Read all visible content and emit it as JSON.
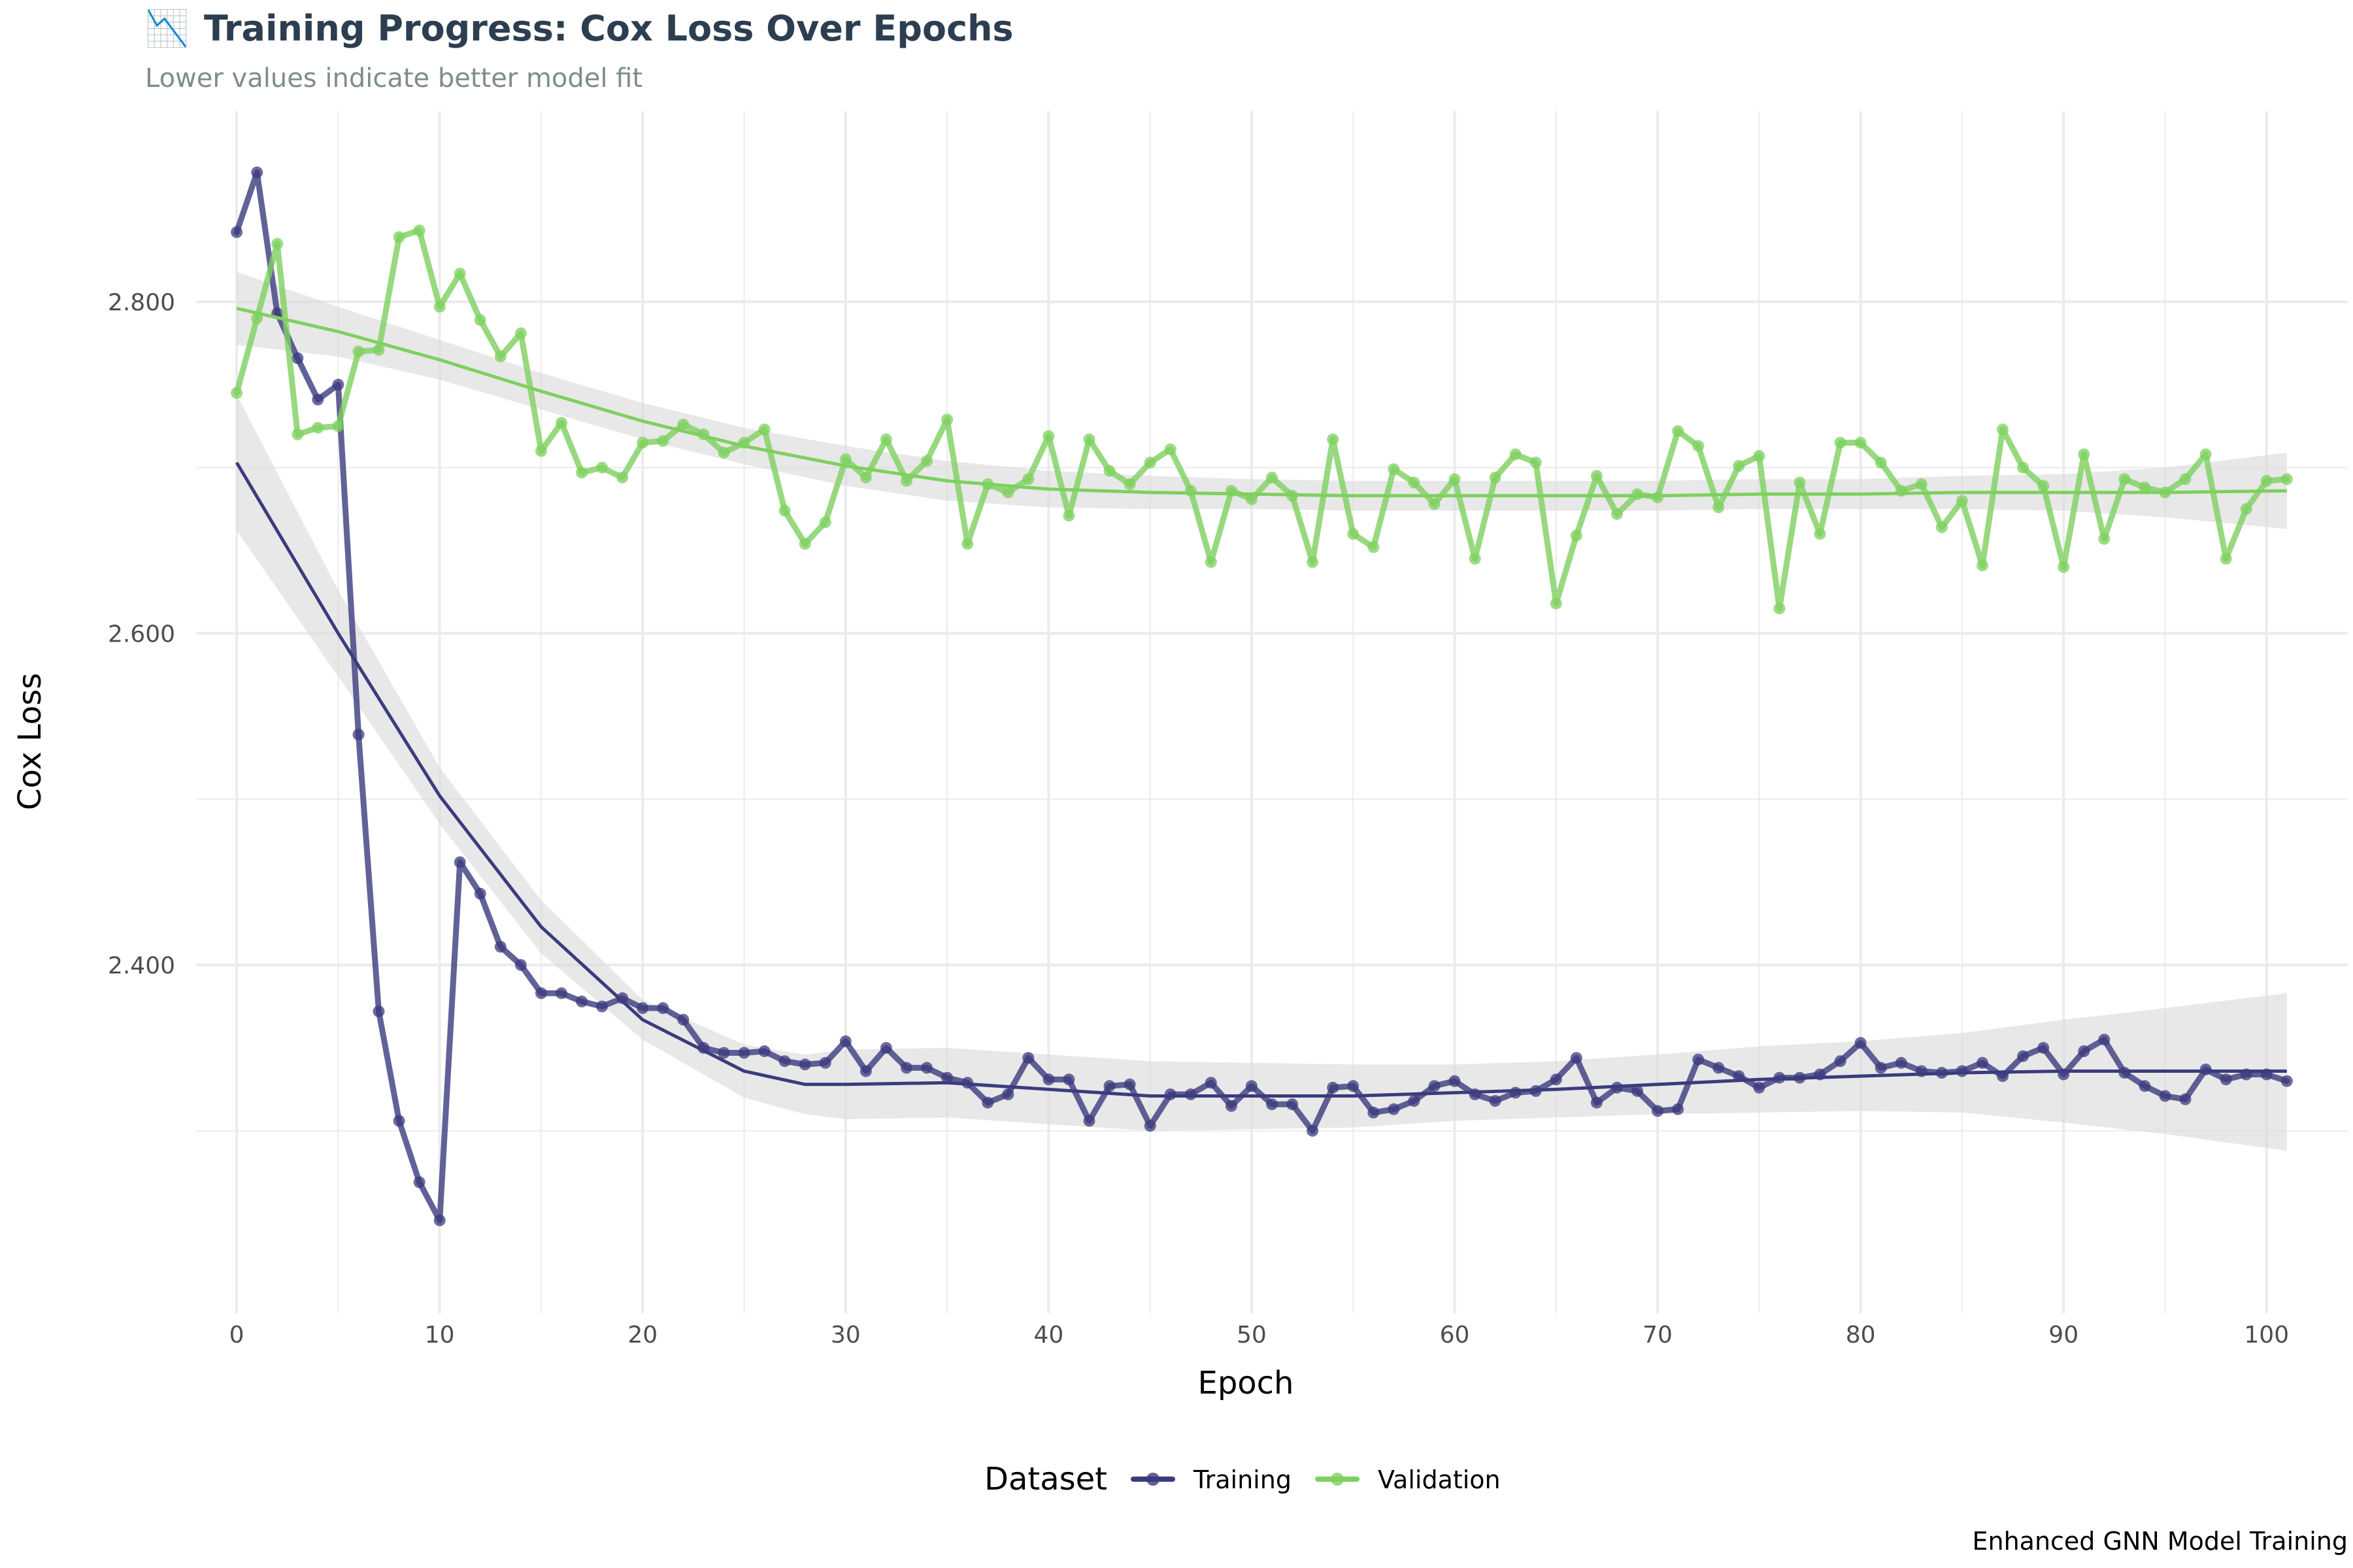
{
  "chart_data": {
    "type": "line",
    "title": "Training Progress: Cox Loss Over Epochs",
    "title_icon": "📉",
    "subtitle": "Lower values indicate better model fit",
    "xlabel": "Epoch",
    "ylabel": "Cox Loss",
    "caption": "Enhanced GNN Model Training",
    "xlim": [
      -2,
      104
    ],
    "ylim": [
      2.19,
      2.915
    ],
    "x_ticks": [
      0,
      10,
      20,
      30,
      40,
      50,
      60,
      70,
      80,
      90,
      100
    ],
    "x_tick_labels": [
      "0",
      "10",
      "20",
      "30",
      "40",
      "50",
      "60",
      "70",
      "80",
      "90",
      "100"
    ],
    "y_ticks": [
      2.4,
      2.6,
      2.8
    ],
    "y_tick_labels": [
      "2.400",
      "2.600",
      "2.800"
    ],
    "grid": true,
    "legend": {
      "title": "Dataset",
      "placement": "bottom",
      "entries": [
        "Training",
        "Validation"
      ]
    },
    "colors": {
      "Training": "#3b3b7e",
      "Validation": "#7ed05f",
      "band": "#d9d9d9",
      "grid": "#ebebeb"
    },
    "x": [
      0,
      1,
      2,
      3,
      4,
      5,
      6,
      7,
      8,
      9,
      10,
      11,
      12,
      13,
      14,
      15,
      16,
      17,
      18,
      19,
      20,
      21,
      22,
      23,
      24,
      25,
      26,
      27,
      28,
      29,
      30,
      31,
      32,
      33,
      34,
      35,
      36,
      37,
      38,
      39,
      40,
      41,
      42,
      43,
      44,
      45,
      46,
      47,
      48,
      49,
      50,
      51,
      52,
      53,
      54,
      55,
      56,
      57,
      58,
      59,
      60,
      61,
      62,
      63,
      64,
      65,
      66,
      67,
      68,
      69,
      70,
      71,
      72,
      73,
      74,
      75,
      76,
      77,
      78,
      79,
      80,
      81,
      82,
      83,
      84,
      85,
      86,
      87,
      88,
      89,
      90,
      91,
      92,
      93,
      94,
      95,
      96,
      97,
      98,
      99,
      100,
      101
    ],
    "series": [
      {
        "name": "Training",
        "values": [
          2.842,
          2.878,
          2.793,
          2.766,
          2.741,
          2.75,
          2.539,
          2.372,
          2.306,
          2.269,
          2.246,
          2.462,
          2.443,
          2.411,
          2.4,
          2.383,
          2.383,
          2.378,
          2.375,
          2.38,
          2.374,
          2.374,
          2.367,
          2.35,
          2.347,
          2.347,
          2.348,
          2.342,
          2.34,
          2.341,
          2.354,
          2.336,
          2.35,
          2.338,
          2.338,
          2.332,
          2.329,
          2.317,
          2.322,
          2.344,
          2.331,
          2.331,
          2.306,
          2.327,
          2.328,
          2.303,
          2.322,
          2.322,
          2.329,
          2.315,
          2.327,
          2.316,
          2.316,
          2.3,
          2.326,
          2.327,
          2.311,
          2.313,
          2.318,
          2.327,
          2.33,
          2.322,
          2.318,
          2.323,
          2.324,
          2.331,
          2.344,
          2.317,
          2.326,
          2.324,
          2.312,
          2.313,
          2.343,
          2.338,
          2.333,
          2.326,
          2.332,
          2.332,
          2.334,
          2.342,
          2.353,
          2.338,
          2.341,
          2.336,
          2.335,
          2.336,
          2.341,
          2.333,
          2.345,
          2.35,
          2.334,
          2.348,
          2.355,
          2.335,
          2.327,
          2.321,
          2.319,
          2.337,
          2.331,
          2.334,
          2.334,
          2.33
        ]
      },
      {
        "name": "Validation",
        "values": [
          2.745,
          2.79,
          2.835,
          2.72,
          2.724,
          2.725,
          2.77,
          2.771,
          2.839,
          2.843,
          2.797,
          2.817,
          2.789,
          2.767,
          2.781,
          2.71,
          2.727,
          2.697,
          2.7,
          2.694,
          2.715,
          2.716,
          2.726,
          2.72,
          2.709,
          2.715,
          2.723,
          2.674,
          2.654,
          2.667,
          2.705,
          2.694,
          2.717,
          2.692,
          2.704,
          2.729,
          2.654,
          2.69,
          2.685,
          2.693,
          2.719,
          2.671,
          2.717,
          2.698,
          2.69,
          2.703,
          2.711,
          2.686,
          2.643,
          2.686,
          2.681,
          2.694,
          2.683,
          2.643,
          2.717,
          2.66,
          2.652,
          2.699,
          2.691,
          2.678,
          2.693,
          2.645,
          2.694,
          2.708,
          2.703,
          2.618,
          2.659,
          2.695,
          2.672,
          2.684,
          2.682,
          2.722,
          2.713,
          2.676,
          2.701,
          2.707,
          2.615,
          2.691,
          2.66,
          2.715,
          2.715,
          2.703,
          2.686,
          2.69,
          2.664,
          2.68,
          2.641,
          2.723,
          2.7,
          2.689,
          2.64,
          2.708,
          2.657,
          2.693,
          2.688,
          2.685,
          2.693,
          2.708,
          2.645,
          2.675,
          2.692,
          2.693
        ]
      }
    ],
    "smooth": [
      {
        "name": "Training",
        "x": [
          0,
          5,
          10,
          15,
          20,
          25,
          28,
          30,
          35,
          40,
          45,
          50,
          55,
          60,
          65,
          70,
          75,
          80,
          85,
          90,
          95,
          101
        ],
        "y": [
          2.703,
          2.6,
          2.502,
          2.423,
          2.367,
          2.336,
          2.328,
          2.328,
          2.329,
          2.325,
          2.321,
          2.321,
          2.321,
          2.323,
          2.325,
          2.328,
          2.331,
          2.333,
          2.335,
          2.336,
          2.336,
          2.336
        ],
        "lower": [
          2.662,
          2.574,
          2.485,
          2.407,
          2.355,
          2.32,
          2.31,
          2.307,
          2.308,
          2.304,
          2.3,
          2.301,
          2.302,
          2.306,
          2.308,
          2.31,
          2.311,
          2.312,
          2.311,
          2.305,
          2.298,
          2.288
        ],
        "upper": [
          2.744,
          2.626,
          2.519,
          2.439,
          2.379,
          2.352,
          2.346,
          2.349,
          2.35,
          2.346,
          2.342,
          2.341,
          2.34,
          2.34,
          2.342,
          2.346,
          2.351,
          2.354,
          2.359,
          2.367,
          2.374,
          2.383
        ]
      },
      {
        "name": "Validation",
        "x": [
          0,
          5,
          10,
          15,
          20,
          25,
          30,
          35,
          40,
          45,
          50,
          55,
          60,
          65,
          70,
          75,
          80,
          85,
          90,
          95,
          101
        ],
        "y": [
          2.796,
          2.782,
          2.765,
          2.746,
          2.728,
          2.713,
          2.701,
          2.692,
          2.687,
          2.685,
          2.684,
          2.683,
          2.683,
          2.683,
          2.683,
          2.684,
          2.684,
          2.685,
          2.685,
          2.685,
          2.686
        ],
        "lower": [
          2.774,
          2.767,
          2.753,
          2.735,
          2.717,
          2.702,
          2.689,
          2.68,
          2.676,
          2.675,
          2.675,
          2.674,
          2.674,
          2.674,
          2.674,
          2.675,
          2.675,
          2.675,
          2.674,
          2.67,
          2.663
        ],
        "upper": [
          2.818,
          2.797,
          2.777,
          2.757,
          2.739,
          2.724,
          2.713,
          2.704,
          2.698,
          2.695,
          2.693,
          2.692,
          2.692,
          2.692,
          2.692,
          2.693,
          2.693,
          2.695,
          2.696,
          2.7,
          2.709
        ]
      }
    ]
  }
}
